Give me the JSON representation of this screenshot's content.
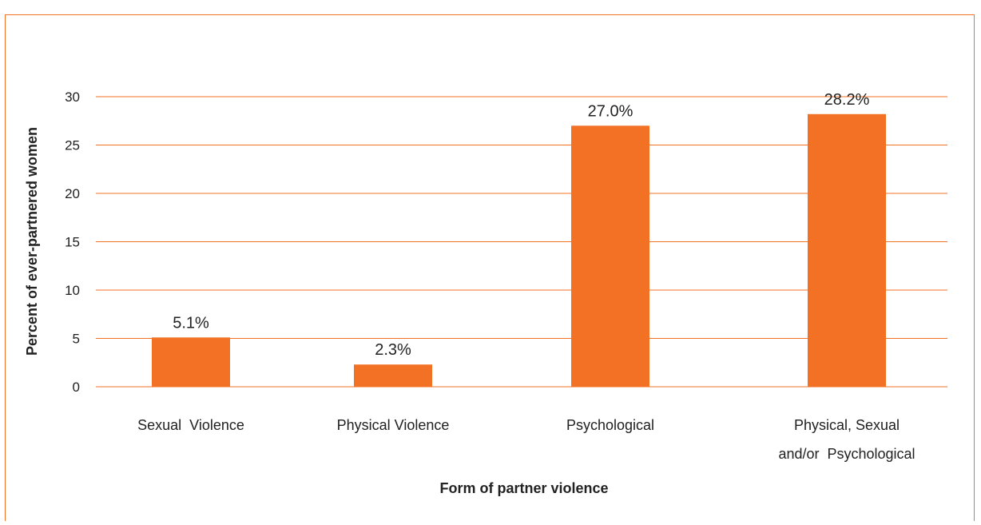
{
  "chart_data": {
    "type": "bar",
    "title": "",
    "xlabel": "Form of partner violence",
    "ylabel": "Percent of ever-partnered women",
    "categories": [
      [
        "Sexual  Violence"
      ],
      [
        "Physical Violence"
      ],
      [
        "Psychological"
      ],
      [
        "Physical, Sexual",
        "and/or  Psychological"
      ]
    ],
    "values": [
      5.1,
      2.3,
      27.0,
      28.2
    ],
    "data_labels": [
      "5.1%",
      "2.3%",
      "27.0%",
      "28.2%"
    ],
    "ylim": [
      0,
      30
    ],
    "yticks": [
      0,
      5,
      10,
      15,
      20,
      25,
      30
    ],
    "grid": true,
    "legend": "none",
    "colors": {
      "bar": "#F37124",
      "grid": "#F37124",
      "frame": "#F37124",
      "text": "#222222"
    }
  }
}
